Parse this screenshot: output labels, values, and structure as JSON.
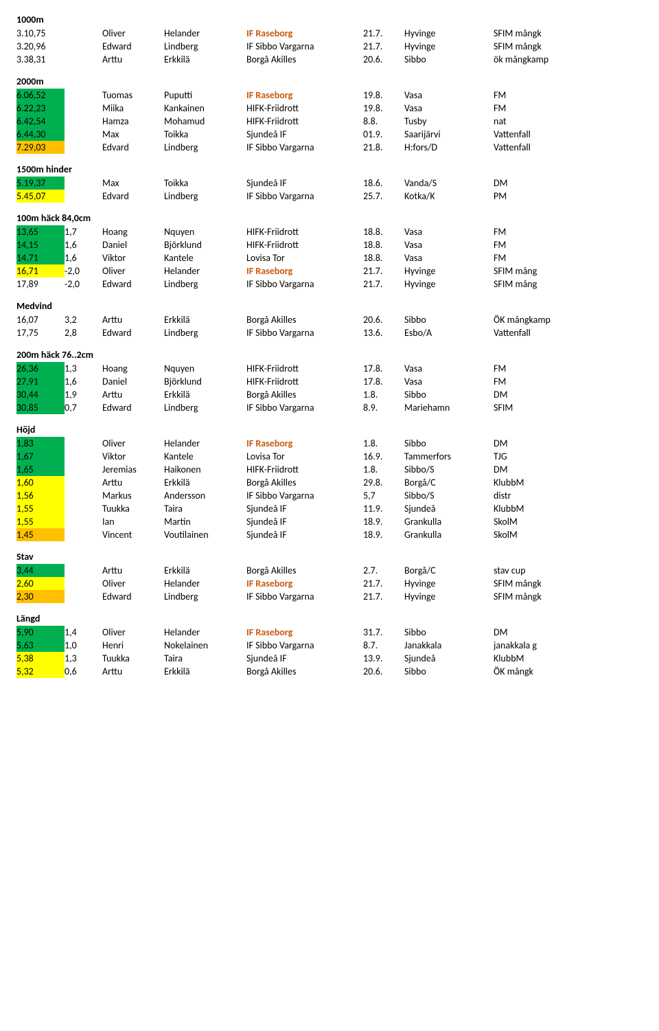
{
  "sections": [
    {
      "title": "1000m",
      "hasWind": false,
      "rows": [
        {
          "res": "3.10,75",
          "hl": "",
          "wind": "",
          "fn": "Oliver",
          "ln": "Helander",
          "club": "IF Raseborg",
          "rase": true,
          "date": "21.7.",
          "place": "Hyvinge",
          "note": "SFIM mångk"
        },
        {
          "res": "3.20,96",
          "hl": "",
          "wind": "",
          "fn": "Edward",
          "ln": "Lindberg",
          "club": "IF Sibbo Vargarna",
          "rase": false,
          "date": "21.7.",
          "place": "Hyvinge",
          "note": "SFIM mångk"
        },
        {
          "res": "3.38,31",
          "hl": "",
          "wind": "",
          "fn": "Arttu",
          "ln": "Erkkilä",
          "club": "Borgå Akilles",
          "rase": false,
          "date": "20.6.",
          "place": "Sibbo",
          "note": "ök mångkamp"
        }
      ]
    },
    {
      "title": "2000m",
      "hasWind": false,
      "rows": [
        {
          "res": "6.06,52",
          "hl": "green",
          "wind": "",
          "fn": "Tuomas",
          "ln": "Puputti",
          "club": "IF Raseborg",
          "rase": true,
          "date": "19.8.",
          "place": "Vasa",
          "note": "FM"
        },
        {
          "res": "6.22,23",
          "hl": "green",
          "wind": "",
          "fn": "Miika",
          "ln": "Kankainen",
          "club": "HIFK-Friidrott",
          "rase": false,
          "date": "19.8.",
          "place": "Vasa",
          "note": "FM"
        },
        {
          "res": "6.42,54",
          "hl": "green",
          "wind": "",
          "fn": "Hamza",
          "ln": "Mohamud",
          "club": "HIFK-Friidrott",
          "rase": false,
          "date": "8.8.",
          "place": "Tusby",
          "note": "nat"
        },
        {
          "res": "6.44,30",
          "hl": "green",
          "wind": "",
          "fn": "Max",
          "ln": "Toikka",
          "club": "Sjundeå IF",
          "rase": false,
          "date": "01.9.",
          "place": "Saarijärvi",
          "note": "Vattenfall"
        },
        {
          "res": "7.29,03",
          "hl": "orange",
          "wind": "",
          "fn": "Edvard",
          "ln": "Lindberg",
          "club": "IF Sibbo Vargarna",
          "rase": false,
          "date": "21.8.",
          "place": "H:fors/D",
          "note": "Vattenfall"
        }
      ]
    },
    {
      "title": "1500m hinder",
      "hasWind": false,
      "rows": [
        {
          "res": "5.19,37",
          "hl": "green",
          "wind": "",
          "fn": "Max",
          "ln": "Toikka",
          "club": "Sjundeå IF",
          "rase": false,
          "date": "18.6.",
          "place": "Vanda/S",
          "note": "DM"
        },
        {
          "res": "5.45,07",
          "hl": "yellow",
          "wind": "",
          "fn": "Edvard",
          "ln": "Lindberg",
          "club": "IF Sibbo Vargarna",
          "rase": false,
          "date": "25.7.",
          "place": "Kotka/K",
          "note": "PM"
        }
      ]
    },
    {
      "title": "100m häck 84,0cm",
      "hasWind": true,
      "rows": [
        {
          "res": "13,65",
          "hl": "green",
          "wind": "1,7",
          "fn": "Hoang",
          "ln": "Nquyen",
          "club": "HIFK-Friidrott",
          "rase": false,
          "date": "18.8.",
          "place": "Vasa",
          "note": "FM"
        },
        {
          "res": "14,15",
          "hl": "green",
          "wind": "1,6",
          "fn": "Daniel",
          "ln": "Björklund",
          "club": "HIFK-Friidrott",
          "rase": false,
          "date": "18.8.",
          "place": "Vasa",
          "note": "FM"
        },
        {
          "res": "14,71",
          "hl": "green",
          "wind": "1,6",
          "fn": "Viktor",
          "ln": "Kantele",
          "club": "Lovisa Tor",
          "rase": false,
          "date": "18.8.",
          "place": "Vasa",
          "note": "FM"
        },
        {
          "res": "16,71",
          "hl": "yellow",
          "wind": "-2,0",
          "fn": "Oliver",
          "ln": "Helander",
          "club": "IF Raseborg",
          "rase": true,
          "date": "21.7.",
          "place": "Hyvinge",
          "note": "SFIM mång"
        },
        {
          "res": "17,89",
          "hl": "",
          "wind": "-2,0",
          "fn": "Edward",
          "ln": "Lindberg",
          "club": "IF Sibbo Vargarna",
          "rase": false,
          "date": "21.7.",
          "place": "Hyvinge",
          "note": "SFIM mång"
        }
      ]
    },
    {
      "title": "Medvind",
      "hasWind": true,
      "rows": [
        {
          "res": "16,07",
          "hl": "",
          "wind": "3,2",
          "fn": "Arttu",
          "ln": "Erkkilä",
          "club": "Borgå Akilles",
          "rase": false,
          "date": "20.6.",
          "place": "Sibbo",
          "note": "ÖK mångkamp"
        },
        {
          "res": "17,75",
          "hl": "",
          "wind": "2,8",
          "fn": "Edward",
          "ln": "Lindberg",
          "club": "IF Sibbo Vargarna",
          "rase": false,
          "date": "13.6.",
          "place": "Esbo/A",
          "note": "Vattenfall"
        }
      ]
    },
    {
      "title": "200m häck 76..2cm",
      "hasWind": true,
      "rows": [
        {
          "res": "26,36",
          "hl": "green",
          "wind": "1,3",
          "fn": "Hoang",
          "ln": "Nquyen",
          "club": "HIFK-Friidrott",
          "rase": false,
          "date": "17.8.",
          "place": "Vasa",
          "note": "FM"
        },
        {
          "res": "27,91",
          "hl": "green",
          "wind": "1,6",
          "fn": "Daniel",
          "ln": "Björklund",
          "club": "HIFK-Friidrott",
          "rase": false,
          "date": "17.8.",
          "place": "Vasa",
          "note": "FM"
        },
        {
          "res": "30,44",
          "hl": "green",
          "wind": "1,9",
          "fn": "Arttu",
          "ln": "Erkkilä",
          "club": "Borgå Akilles",
          "rase": false,
          "date": "1.8.",
          "place": "Sibbo",
          "note": "DM"
        },
        {
          "res": "30,85",
          "hl": "green",
          "wind": "0,7",
          "fn": "Edward",
          "ln": "Lindberg",
          "club": "IF Sibbo Vargarna",
          "rase": false,
          "date": "8.9.",
          "place": "Mariehamn",
          "note": "SFIM"
        }
      ]
    },
    {
      "title": "Höjd",
      "hasWind": false,
      "rows": [
        {
          "res": "1,83",
          "hl": "green",
          "wind": "",
          "fn": "Oliver",
          "ln": "Helander",
          "club": "IF Raseborg",
          "rase": true,
          "date": "1.8.",
          "place": "Sibbo",
          "note": "DM"
        },
        {
          "res": "1,67",
          "hl": "green",
          "wind": "",
          "fn": "Viktor",
          "ln": "Kantele",
          "club": "Lovisa Tor",
          "rase": false,
          "date": "16.9.",
          "place": "Tammerfors",
          "note": "TJG"
        },
        {
          "res": "1,65",
          "hl": "green",
          "wind": "",
          "fn": "Jeremias",
          "ln": "Haikonen",
          "club": "HIFK-Friidrott",
          "rase": false,
          "date": "1.8.",
          "place": "Sibbo/S",
          "note": "DM"
        },
        {
          "res": "1,60",
          "hl": "yellow",
          "wind": "",
          "fn": "Arttu",
          "ln": "Erkkilä",
          "club": "Borgå Akilles",
          "rase": false,
          "date": "29.8.",
          "place": "Borgå/C",
          "note": "KlubbM"
        },
        {
          "res": "1,56",
          "hl": "yellow",
          "wind": "",
          "fn": "Markus",
          "ln": "Andersson",
          "club": "IF Sibbo Vargarna",
          "rase": false,
          "date": "5,7",
          "place": "Sibbo/S",
          "note": "distr"
        },
        {
          "res": "1,55",
          "hl": "yellow",
          "wind": "",
          "fn": "Tuukka",
          "ln": "Taira",
          "club": "Sjundeå IF",
          "rase": false,
          "date": "11.9.",
          "place": "Sjundeå",
          "note": "KlubbM"
        },
        {
          "res": "1,55",
          "hl": "yellow",
          "wind": "",
          "fn": "Ian",
          "ln": "Martin",
          "club": "Sjundeå IF",
          "rase": false,
          "date": "18.9.",
          "place": "Grankulla",
          "note": "SkolM"
        },
        {
          "res": "1,45",
          "hl": "orange",
          "wind": "",
          "fn": "Vincent",
          "ln": "Voutilainen",
          "club": "Sjundeå IF",
          "rase": false,
          "date": "18.9.",
          "place": "Grankulla",
          "note": "SkolM"
        }
      ]
    },
    {
      "title": "Stav",
      "hasWind": false,
      "rows": [
        {
          "res": "3,44",
          "hl": "green",
          "wind": "",
          "fn": "Arttu",
          "ln": "Erkkilä",
          "club": "Borgå Akilles",
          "rase": false,
          "date": "2.7.",
          "place": "Borgå/C",
          "note": "stav cup"
        },
        {
          "res": "2,60",
          "hl": "yellow",
          "wind": "",
          "fn": "Oliver",
          "ln": "Helander",
          "club": "IF  Raseborg",
          "rase": true,
          "date": "21.7.",
          "place": "Hyvinge",
          "note": "SFIM mångk"
        },
        {
          "res": "2,30",
          "hl": "orange",
          "wind": "",
          "fn": "Edward",
          "ln": "Lindberg",
          "club": "IF Sibbo Vargarna",
          "rase": false,
          "date": "21.7.",
          "place": "Hyvinge",
          "note": "SFIM mångk"
        }
      ]
    },
    {
      "title": "Längd",
      "hasWind": true,
      "rows": [
        {
          "res": "5,90",
          "hl": "green",
          "wind": "1,4",
          "fn": "Oliver",
          "ln": "Helander",
          "club": "IF Raseborg",
          "rase": true,
          "date": "31.7.",
          "place": "Sibbo",
          "note": "DM"
        },
        {
          "res": "5,63",
          "hl": "green",
          "wind": "1,0",
          "fn": "Henri",
          "ln": "Nokelainen",
          "club": "IF Sibbo Vargarna",
          "rase": false,
          "date": "8.7.",
          "place": "Janakkala",
          "note": "janakkala g"
        },
        {
          "res": "5,38",
          "hl": "yellow",
          "wind": "1,3",
          "fn": "Tuukka",
          "ln": "Taira",
          "club": "Sjundeå IF",
          "rase": false,
          "date": "13.9.",
          "place": "Sjundeå",
          "note": "KlubbM"
        },
        {
          "res": "5,32",
          "hl": "yellow",
          "wind": "0,6",
          "fn": "Arttu",
          "ln": "Erkkilä",
          "club": "Borgå Akilles",
          "rase": false,
          "date": "20.6.",
          "place": "Sibbo",
          "note": "ÖK mångk"
        }
      ]
    }
  ]
}
